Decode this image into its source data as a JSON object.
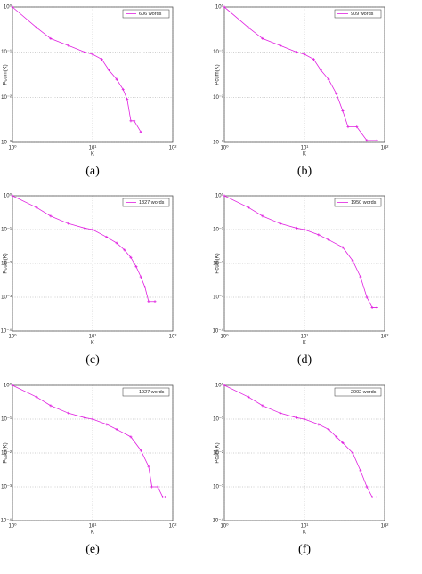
{
  "chart_data": [
    {
      "type": "line",
      "caption": "(a)",
      "x_label": "K",
      "y_label": "Pcum(K)",
      "log_x": true,
      "log_y": true,
      "grid": true,
      "legend": "upper right",
      "xlim": [
        1,
        100
      ],
      "xticks": [
        {
          "value": 1,
          "label": "10⁰"
        },
        {
          "value": 10,
          "label": "10¹"
        },
        {
          "value": 100,
          "label": "10²"
        }
      ],
      "ylim": [
        0.001,
        1
      ],
      "yticks": [
        {
          "value": 0.001,
          "label": "10⁻³"
        },
        {
          "value": 0.01,
          "label": "10⁻²"
        },
        {
          "value": 0.1,
          "label": "10⁻¹"
        },
        {
          "value": 1,
          "label": "10⁰"
        }
      ],
      "series": [
        {
          "name": "606 words",
          "color": "#e020e0",
          "x": [
            1,
            2,
            3,
            5,
            8,
            10,
            13,
            16,
            20,
            24,
            27,
            30,
            33,
            40
          ],
          "values": [
            1,
            0.35,
            0.2,
            0.14,
            0.1,
            0.09,
            0.07,
            0.04,
            0.025,
            0.015,
            0.009,
            0.003,
            0.003,
            0.0017
          ]
        }
      ]
    },
    {
      "type": "line",
      "caption": "(b)",
      "x_label": "K",
      "y_label": "Pcum(K)",
      "log_x": true,
      "log_y": true,
      "grid": true,
      "legend": "upper right",
      "xlim": [
        1,
        100
      ],
      "xticks": [
        {
          "value": 1,
          "label": "10⁰"
        },
        {
          "value": 10,
          "label": "10¹"
        },
        {
          "value": 100,
          "label": "10²"
        }
      ],
      "ylim": [
        0.001,
        1
      ],
      "yticks": [
        {
          "value": 0.001,
          "label": "10⁻³"
        },
        {
          "value": 0.01,
          "label": "10⁻²"
        },
        {
          "value": 0.1,
          "label": "10⁻¹"
        },
        {
          "value": 1,
          "label": "10⁰"
        }
      ],
      "series": [
        {
          "name": "909 words",
          "color": "#e020e0",
          "x": [
            1,
            2,
            3,
            5,
            8,
            10,
            13,
            16,
            20,
            25,
            30,
            35,
            45,
            60,
            80
          ],
          "values": [
            1,
            0.35,
            0.2,
            0.14,
            0.1,
            0.09,
            0.07,
            0.04,
            0.025,
            0.012,
            0.005,
            0.0022,
            0.0022,
            0.0011,
            0.0011
          ]
        }
      ]
    },
    {
      "type": "line",
      "caption": "(c)",
      "x_label": "K",
      "y_label": "Pcum(K)",
      "log_x": true,
      "log_y": true,
      "grid": true,
      "legend": "upper right",
      "xlim": [
        1,
        100
      ],
      "xticks": [
        {
          "value": 1,
          "label": "10⁰"
        },
        {
          "value": 10,
          "label": "10¹"
        },
        {
          "value": 100,
          "label": "10²"
        }
      ],
      "ylim": [
        0.0001,
        1
      ],
      "yticks": [
        {
          "value": 0.0001,
          "label": "10⁻⁴"
        },
        {
          "value": 0.001,
          "label": "10⁻³"
        },
        {
          "value": 0.01,
          "label": "10⁻²"
        },
        {
          "value": 0.1,
          "label": "10⁻¹"
        },
        {
          "value": 1,
          "label": "10⁰"
        }
      ],
      "series": [
        {
          "name": "1327 words",
          "color": "#e020e0",
          "x": [
            1,
            2,
            3,
            5,
            8,
            10,
            15,
            20,
            25,
            30,
            35,
            40,
            45,
            50,
            60
          ],
          "values": [
            1,
            0.45,
            0.25,
            0.15,
            0.11,
            0.1,
            0.06,
            0.04,
            0.025,
            0.015,
            0.008,
            0.004,
            0.002,
            0.00075,
            0.00075
          ]
        }
      ]
    },
    {
      "type": "line",
      "caption": "(d)",
      "x_label": "K",
      "y_label": "Pcum(K)",
      "log_x": true,
      "log_y": true,
      "grid": true,
      "legend": "upper right",
      "xlim": [
        1,
        100
      ],
      "xticks": [
        {
          "value": 1,
          "label": "10⁰"
        },
        {
          "value": 10,
          "label": "10¹"
        },
        {
          "value": 100,
          "label": "10²"
        }
      ],
      "ylim": [
        0.0001,
        1
      ],
      "yticks": [
        {
          "value": 0.0001,
          "label": "10⁻⁴"
        },
        {
          "value": 0.001,
          "label": "10⁻³"
        },
        {
          "value": 0.01,
          "label": "10⁻²"
        },
        {
          "value": 0.1,
          "label": "10⁻¹"
        },
        {
          "value": 1,
          "label": "10⁰"
        }
      ],
      "series": [
        {
          "name": "1950 words",
          "color": "#e020e0",
          "x": [
            1,
            2,
            3,
            5,
            8,
            10,
            15,
            20,
            30,
            40,
            50,
            60,
            70,
            80
          ],
          "values": [
            1,
            0.45,
            0.25,
            0.15,
            0.11,
            0.1,
            0.07,
            0.05,
            0.03,
            0.012,
            0.004,
            0.001,
            0.0005,
            0.0005
          ]
        }
      ]
    },
    {
      "type": "line",
      "caption": "(e)",
      "x_label": "K",
      "y_label": "Pcum(K)",
      "log_x": true,
      "log_y": true,
      "grid": true,
      "legend": "upper right",
      "xlim": [
        1,
        100
      ],
      "xticks": [
        {
          "value": 1,
          "label": "10⁰"
        },
        {
          "value": 10,
          "label": "10¹"
        },
        {
          "value": 100,
          "label": "10²"
        }
      ],
      "ylim": [
        0.0001,
        1
      ],
      "yticks": [
        {
          "value": 0.0001,
          "label": "10⁻⁴"
        },
        {
          "value": 0.001,
          "label": "10⁻³"
        },
        {
          "value": 0.01,
          "label": "10⁻²"
        },
        {
          "value": 0.1,
          "label": "10⁻¹"
        },
        {
          "value": 1,
          "label": "10⁰"
        }
      ],
      "series": [
        {
          "name": "1927 words",
          "color": "#e020e0",
          "x": [
            1,
            2,
            3,
            5,
            8,
            10,
            15,
            20,
            30,
            40,
            50,
            55,
            65,
            75,
            80
          ],
          "values": [
            1,
            0.45,
            0.25,
            0.15,
            0.11,
            0.1,
            0.07,
            0.05,
            0.03,
            0.012,
            0.004,
            0.001,
            0.001,
            0.0005,
            0.0005
          ]
        }
      ]
    },
    {
      "type": "line",
      "caption": "(f)",
      "x_label": "K",
      "y_label": "Pcum(K)",
      "log_x": true,
      "log_y": true,
      "grid": true,
      "legend": "upper right",
      "xlim": [
        1,
        100
      ],
      "xticks": [
        {
          "value": 1,
          "label": "10⁰"
        },
        {
          "value": 10,
          "label": "10¹"
        },
        {
          "value": 100,
          "label": "10²"
        }
      ],
      "ylim": [
        0.0001,
        1
      ],
      "yticks": [
        {
          "value": 0.0001,
          "label": "10⁻⁴"
        },
        {
          "value": 0.001,
          "label": "10⁻³"
        },
        {
          "value": 0.01,
          "label": "10⁻²"
        },
        {
          "value": 0.1,
          "label": "10⁻¹"
        },
        {
          "value": 1,
          "label": "10⁰"
        }
      ],
      "series": [
        {
          "name": "2002 words",
          "color": "#e020e0",
          "x": [
            1,
            2,
            3,
            5,
            8,
            10,
            15,
            20,
            25,
            30,
            40,
            50,
            60,
            70,
            80
          ],
          "values": [
            1,
            0.45,
            0.25,
            0.15,
            0.11,
            0.1,
            0.07,
            0.05,
            0.03,
            0.02,
            0.01,
            0.003,
            0.001,
            0.0005,
            0.0005
          ]
        }
      ]
    }
  ]
}
